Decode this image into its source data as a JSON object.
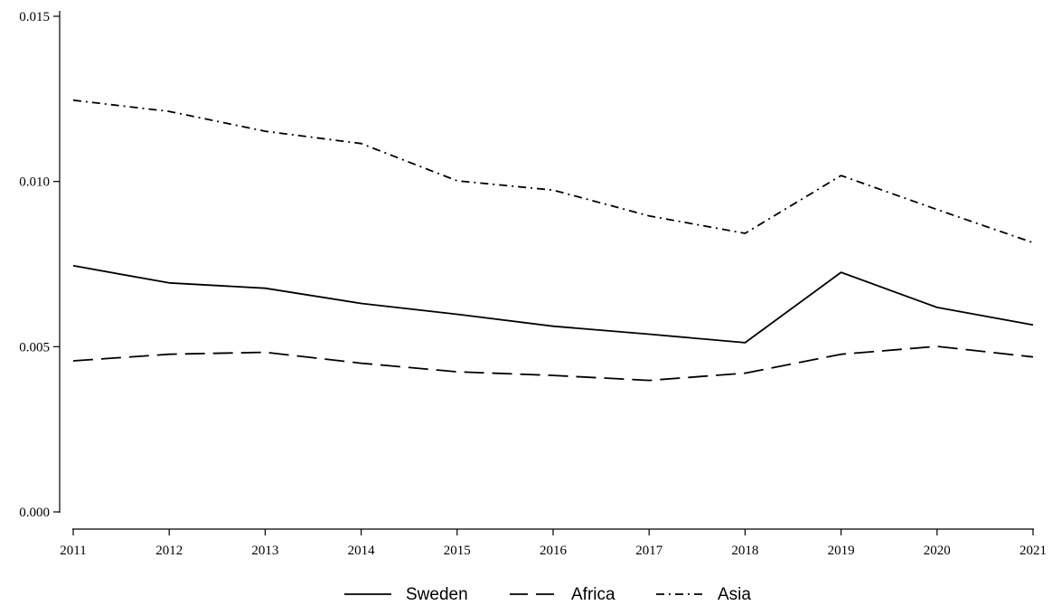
{
  "chart_data": {
    "type": "line",
    "x": [
      2011,
      2012,
      2013,
      2014,
      2015,
      2016,
      2017,
      2018,
      2019,
      2020,
      2021
    ],
    "series": [
      {
        "name": "Sweden",
        "style": "solid",
        "values": [
          0.00745,
          0.00693,
          0.00677,
          0.00631,
          0.00598,
          0.00562,
          0.00538,
          0.00512,
          0.00725,
          0.00619,
          0.00566
        ]
      },
      {
        "name": "Africa",
        "style": "dashed",
        "values": [
          0.00457,
          0.00477,
          0.00483,
          0.0045,
          0.00424,
          0.00413,
          0.00398,
          0.0042,
          0.00477,
          0.00501,
          0.00469
        ]
      },
      {
        "name": "Asia",
        "style": "dash-dot",
        "values": [
          0.01246,
          0.01212,
          0.01152,
          0.01115,
          0.01002,
          0.00974,
          0.00896,
          0.00843,
          0.01018,
          0.00915,
          0.00815
        ]
      }
    ],
    "title": "",
    "xlabel": "",
    "ylabel": "",
    "xlim": [
      2011,
      2021
    ],
    "ylim": [
      0,
      0.015
    ],
    "yticks": [
      0.0,
      0.005,
      0.01,
      0.015
    ],
    "ytick_labels": [
      "0.000",
      "0.005",
      "0.010",
      "0.015"
    ],
    "xtick_labels": [
      "2011",
      "2012",
      "2013",
      "2014",
      "2015",
      "2016",
      "2017",
      "2018",
      "2019",
      "2020",
      "2021"
    ],
    "grid": false,
    "legend_position": "bottom-center",
    "line_color": "#000000"
  }
}
